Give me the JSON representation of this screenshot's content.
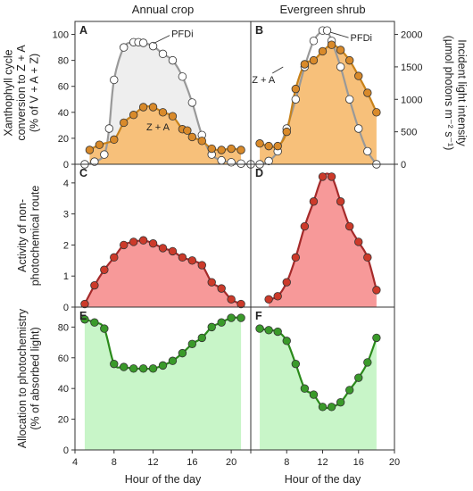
{
  "column_titles": [
    "Annual crop",
    "Evergreen shrub"
  ],
  "x_axis_label": "Hour of the day",
  "y_axis_labels": {
    "row1_left": [
      "Xanthophyll cycle",
      "conversion to Z + A",
      "(% of V + A + Z)"
    ],
    "row1_right": [
      "Incident light intensity",
      "(µmol photons m⁻² s⁻¹)"
    ],
    "row2": [
      "Activity of non-",
      "photochemical route"
    ],
    "row3": [
      "Allocation to photochemistry",
      "(% of absorbed light)"
    ]
  },
  "colors": {
    "pfd_line": "#999999",
    "pfd_fill_crop": "#eeeeee",
    "za_line": "#c8821a",
    "za_fill": "#f7c07a",
    "za_marker": "#d98a2a",
    "npq_line": "#a52a2a",
    "npq_fill": "#f79999",
    "npq_marker": "#cc3a2a",
    "photochem_line": "#2a8a1a",
    "photochem_fill": "#c8f5c8",
    "photochem_marker": "#3a9a2a"
  },
  "chart_data": [
    {
      "panel": "A",
      "type": "line",
      "title": "Annual crop",
      "xlim": [
        4,
        22
      ],
      "x_ticks": [
        "4",
        "8",
        "12",
        "16",
        "20"
      ],
      "ylim": [
        0,
        110
      ],
      "y_ticks": [
        "0",
        "20",
        "40",
        "60",
        "80",
        "100"
      ],
      "y2lim": [
        0,
        2200
      ],
      "y2_ticks": [
        "0",
        "500",
        "1000",
        "1500",
        "2000"
      ],
      "series": [
        {
          "name": "PFDi",
          "axis": "right",
          "x": [
            5,
            6,
            7,
            7.5,
            8,
            9,
            10,
            10.5,
            11,
            12,
            13,
            14,
            15,
            16,
            17,
            18,
            19,
            20,
            21,
            22
          ],
          "y": [
            0,
            40,
            150,
            550,
            1300,
            1800,
            1880,
            1880,
            1870,
            1820,
            1700,
            1600,
            1350,
            950,
            450,
            150,
            60,
            30,
            10,
            0
          ]
        },
        {
          "name": "Z + A",
          "axis": "left",
          "x": [
            5.5,
            6.5,
            8,
            9,
            10,
            11,
            12,
            13,
            14,
            15,
            15.5,
            16,
            17,
            18,
            19,
            20,
            21
          ],
          "y": [
            11,
            15,
            19,
            32,
            38,
            44,
            44,
            40,
            37,
            27,
            26,
            21,
            18,
            12,
            11,
            12,
            11
          ]
        }
      ],
      "annotations": [
        "PFDi",
        "Z + A"
      ]
    },
    {
      "panel": "B",
      "type": "line",
      "title": "Evergreen shrub",
      "xlim": [
        4,
        20
      ],
      "x_ticks": [
        "4",
        "8",
        "12",
        "16",
        "20"
      ],
      "ylim": [
        0,
        110
      ],
      "y_ticks": [
        "0",
        "20",
        "40",
        "60",
        "80",
        "100"
      ],
      "y2lim": [
        0,
        2200
      ],
      "y2_ticks": [
        "0",
        "500",
        "1000",
        "1500",
        "2000"
      ],
      "series": [
        {
          "name": "PFDi",
          "axis": "right",
          "x": [
            5,
            6,
            7,
            8,
            9,
            10,
            11,
            12,
            12.5,
            13,
            14,
            15,
            16,
            17,
            18
          ],
          "y": [
            0,
            50,
            200,
            550,
            1000,
            1500,
            1900,
            2060,
            2060,
            1900,
            1500,
            1000,
            550,
            200,
            0
          ]
        },
        {
          "name": "Z + A",
          "axis": "left",
          "x": [
            5,
            6,
            7,
            8,
            9,
            10,
            11,
            12,
            13,
            14,
            15,
            16,
            17,
            18
          ],
          "y": [
            16,
            14,
            14,
            25,
            58,
            77,
            80,
            87,
            92,
            88,
            80,
            68,
            55,
            40
          ]
        }
      ],
      "annotations": [
        "Z + A",
        "PFDi"
      ]
    },
    {
      "panel": "C",
      "type": "area",
      "xlim": [
        4,
        22
      ],
      "ylim": [
        0,
        4.6
      ],
      "y_ticks": [
        "0",
        "1",
        "2",
        "3",
        "4"
      ],
      "series": [
        {
          "x": [
            5,
            6,
            7,
            8,
            9,
            10,
            11,
            12,
            13,
            14,
            15,
            16,
            17,
            18,
            19,
            20,
            21
          ],
          "y": [
            0.1,
            0.7,
            1.2,
            1.6,
            2.0,
            2.1,
            2.15,
            2.05,
            1.9,
            1.8,
            1.6,
            1.5,
            1.35,
            0.8,
            0.6,
            0.25,
            0.1
          ]
        }
      ]
    },
    {
      "panel": "D",
      "type": "area",
      "xlim": [
        4,
        20
      ],
      "ylim": [
        0,
        4.6
      ],
      "y_ticks": [
        "0",
        "1",
        "2",
        "3",
        "4"
      ],
      "series": [
        {
          "x": [
            6,
            7,
            8,
            9,
            10,
            11,
            12,
            13,
            14,
            15,
            16,
            17,
            18
          ],
          "y": [
            0.25,
            0.35,
            0.8,
            1.6,
            2.6,
            3.4,
            4.2,
            4.2,
            3.4,
            2.6,
            2.1,
            1.6,
            0.55
          ]
        }
      ]
    },
    {
      "panel": "E",
      "type": "area",
      "xlim": [
        4,
        22
      ],
      "x_ticks": [
        "4",
        "8",
        "12",
        "16",
        "20"
      ],
      "ylim": [
        0,
        93
      ],
      "y_ticks": [
        "0",
        "20",
        "40",
        "60",
        "80"
      ],
      "series": [
        {
          "x": [
            5,
            6,
            7,
            8,
            9,
            10,
            11,
            12,
            13,
            14,
            15,
            16,
            17,
            18,
            19,
            20,
            21
          ],
          "y": [
            85,
            83,
            79,
            56,
            54,
            53,
            53,
            53,
            55,
            58,
            63,
            69,
            73,
            80,
            83,
            86,
            86
          ]
        }
      ]
    },
    {
      "panel": "F",
      "type": "area",
      "xlim": [
        4,
        20
      ],
      "x_ticks": [
        "4",
        "8",
        "12",
        "16",
        "20"
      ],
      "ylim": [
        0,
        93
      ],
      "y_ticks": [
        "0",
        "20",
        "40",
        "60",
        "80"
      ],
      "series": [
        {
          "x": [
            5,
            6,
            7,
            8,
            9,
            10,
            11,
            12,
            13,
            14,
            15,
            16,
            17,
            18
          ],
          "y": [
            79,
            78,
            77,
            71,
            56,
            40,
            36,
            28,
            28,
            31,
            39,
            47,
            57,
            73
          ]
        }
      ]
    }
  ]
}
